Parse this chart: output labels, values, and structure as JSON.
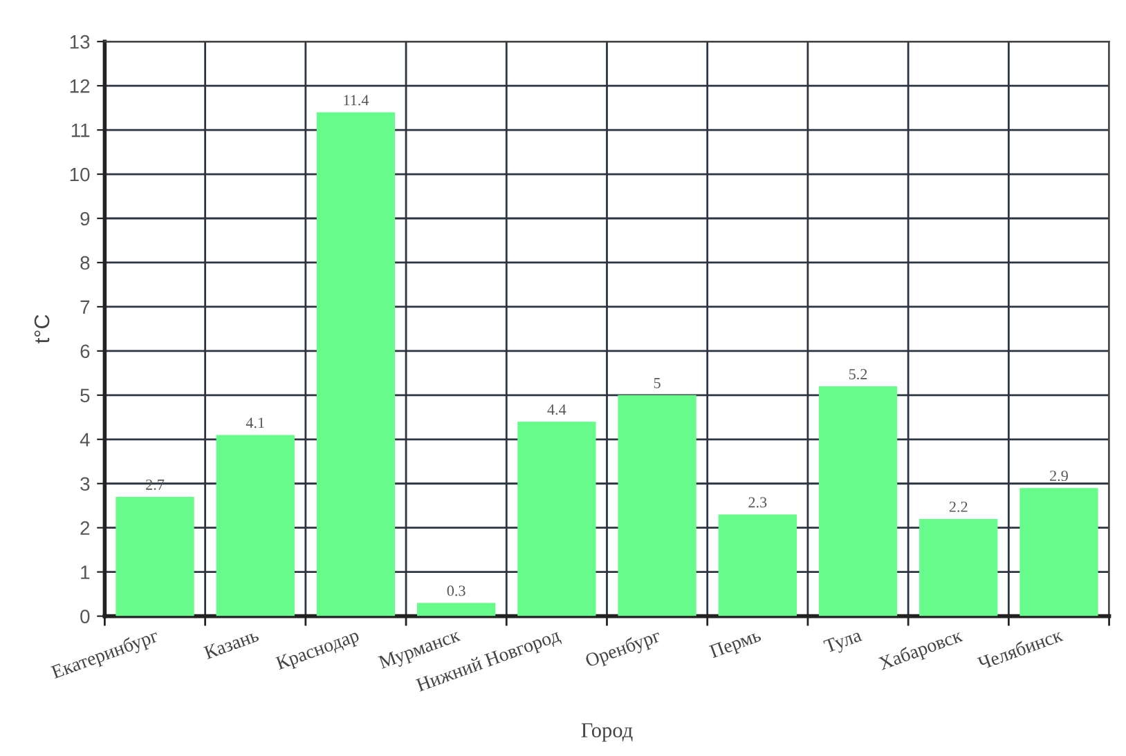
{
  "chart_data": {
    "type": "bar",
    "categories": [
      "Екатеринбург",
      "Казань",
      "Краснодар",
      "Мурманск",
      "Нижний Новгород",
      "Оренбург",
      "Пермь",
      "Тула",
      "Хабаровск",
      "Челябинск"
    ],
    "values": [
      2.7,
      4.1,
      11.4,
      0.3,
      4.4,
      5,
      2.3,
      5.2,
      2.2,
      2.9
    ],
    "color": "#66fb8a",
    "xlabel": "Город",
    "ylabel": "t°C",
    "ylim": [
      0,
      13
    ],
    "yticks": [
      0,
      1,
      2,
      3,
      4,
      5,
      6,
      7,
      8,
      9,
      10,
      11,
      12,
      13
    ],
    "grid": true,
    "data_labels": true
  }
}
